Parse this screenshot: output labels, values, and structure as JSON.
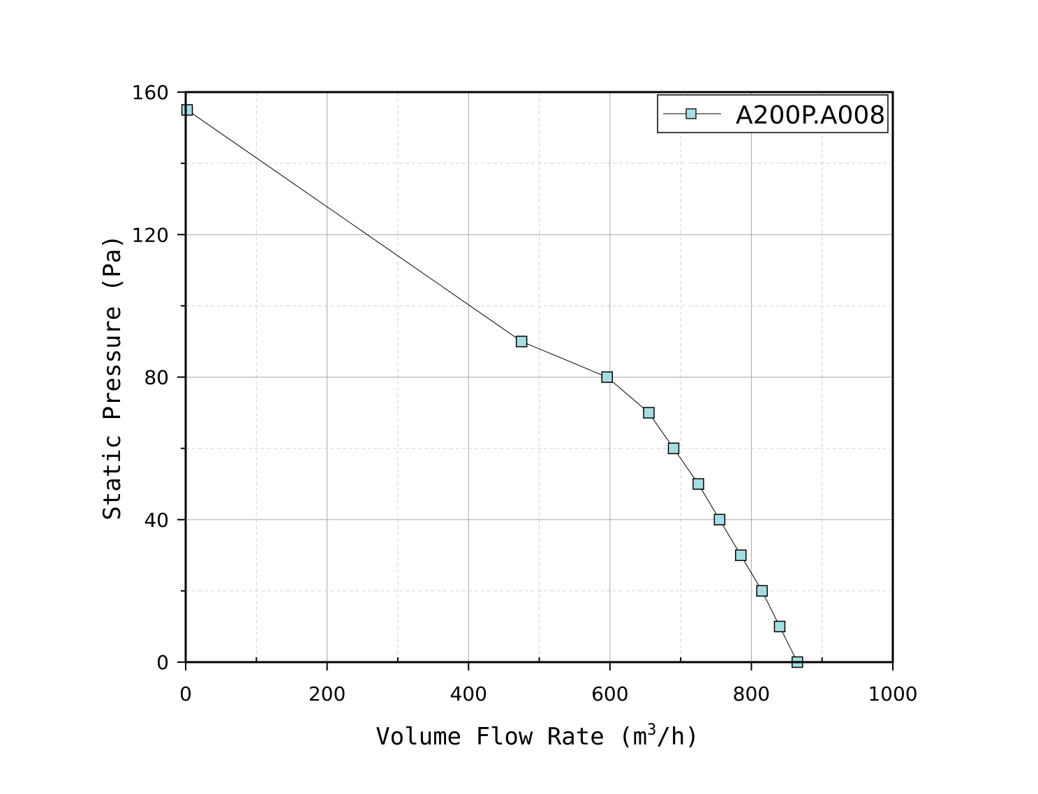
{
  "chart_data": {
    "type": "line",
    "title": "",
    "xlabel": {
      "pre": "Volume Flow Rate (m",
      "sup": "3",
      "post": "/h)"
    },
    "ylabel": "Static Pressure (Pa)",
    "xlim": [
      0,
      1000
    ],
    "ylim": [
      0,
      160
    ],
    "x_ticks": [
      0,
      200,
      400,
      600,
      800,
      1000
    ],
    "y_ticks": [
      0,
      40,
      80,
      120,
      160
    ],
    "x_minor_step": 100,
    "y_minor_step": 20,
    "grid": true,
    "legend_position": "top-right",
    "series": [
      {
        "name": "A200P.A008",
        "marker": "square",
        "marker_fill": "#a6dde3",
        "line_color": "#000000",
        "x": [
          2,
          475,
          596,
          655,
          690,
          725,
          755,
          785,
          815,
          840,
          865
        ],
        "y": [
          155,
          90,
          80,
          70,
          60,
          50,
          40,
          30,
          20,
          10,
          0
        ]
      }
    ]
  }
}
